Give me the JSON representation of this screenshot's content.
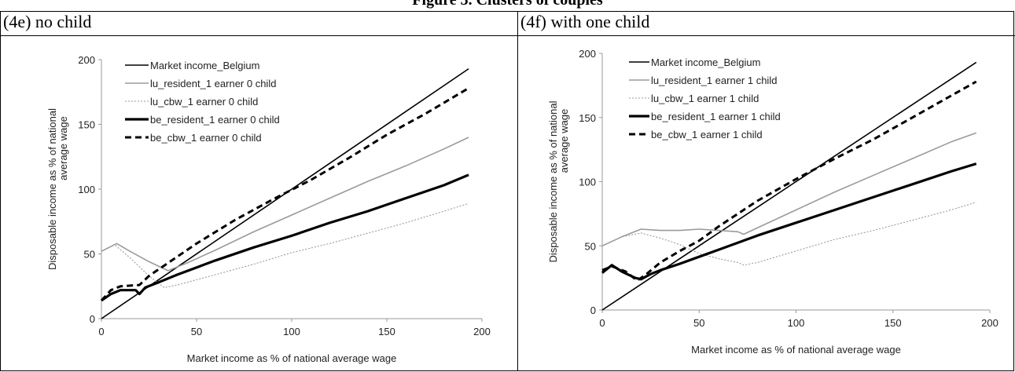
{
  "page_title": "Figure 3. Clusters of couples",
  "chart_data": [
    {
      "type": "line",
      "panel_title": "(4e) no child",
      "xlabel": "Market income as % of national average wage",
      "ylabel_line1": "Disposable income as % of national",
      "ylabel_line2": "average wage",
      "xlim": [
        0,
        200
      ],
      "ylim": [
        0,
        200
      ],
      "xticks": [
        "0",
        "50",
        "100",
        "150",
        "200"
      ],
      "yticks": [
        "0",
        "50",
        "100",
        "150",
        "200"
      ],
      "legend_position": "top-left",
      "series": [
        {
          "name": "Market income_Belgium",
          "color": "#000000",
          "style": "solid-thin",
          "x": [
            0,
            193
          ],
          "y": [
            0,
            193
          ]
        },
        {
          "name": "lu_resident_1 earner 0 child",
          "color": "#9a9a9a",
          "style": "solid-thin",
          "x": [
            0,
            8,
            15,
            25,
            35,
            45,
            60,
            80,
            100,
            120,
            140,
            160,
            180,
            193
          ],
          "y": [
            52,
            58,
            52,
            44,
            37,
            43,
            53,
            67,
            80,
            93,
            106,
            118,
            131,
            140
          ]
        },
        {
          "name": "lu_cbw_1 earner 0 child",
          "color": "#9a9a9a",
          "style": "dotted",
          "x": [
            0,
            7,
            15,
            25,
            33,
            40,
            60,
            80,
            100,
            120,
            140,
            160,
            180,
            193
          ],
          "y": [
            52,
            57,
            47,
            33,
            24,
            26,
            34,
            42,
            51,
            58,
            66,
            74,
            83,
            89
          ]
        },
        {
          "name": "be_resident_1 earner 0 child",
          "color": "#000000",
          "style": "solid-thick",
          "x": [
            0,
            5,
            10,
            18,
            20,
            23,
            30,
            40,
            60,
            80,
            100,
            120,
            140,
            160,
            180,
            193
          ],
          "y": [
            14,
            19,
            22,
            22,
            19,
            24,
            28,
            34,
            45,
            55,
            64,
            74,
            83,
            93,
            103,
            111
          ]
        },
        {
          "name": "be_cbw_1 earner 0 child",
          "color": "#000000",
          "style": "dashed",
          "x": [
            0,
            5,
            10,
            20,
            25,
            35,
            50,
            70,
            90,
            110,
            130,
            150,
            170,
            193
          ],
          "y": [
            14,
            22,
            25,
            26,
            33,
            43,
            58,
            76,
            92,
            107,
            124,
            142,
            158,
            178
          ]
        }
      ]
    },
    {
      "type": "line",
      "panel_title": "(4f) with one child",
      "xlabel": "Market income as % of national average wage",
      "ylabel_line1": "Disposable income as % of national",
      "ylabel_line2": "average wage",
      "xlim": [
        0,
        200
      ],
      "ylim": [
        0,
        200
      ],
      "xticks": [
        "0",
        "50",
        "100",
        "150",
        "200"
      ],
      "yticks": [
        "0",
        "50",
        "100",
        "150",
        "200"
      ],
      "legend_position": "top-left",
      "series": [
        {
          "name": "Market income_Belgium",
          "color": "#000000",
          "style": "solid-thin",
          "x": [
            0,
            193
          ],
          "y": [
            0,
            193
          ]
        },
        {
          "name": "lu_resident_1 earner 1 child",
          "color": "#9a9a9a",
          "style": "solid-thin",
          "x": [
            0,
            10,
            20,
            30,
            40,
            50,
            60,
            70,
            73,
            80,
            100,
            120,
            140,
            160,
            180,
            193
          ],
          "y": [
            50,
            57,
            63,
            62,
            62,
            63,
            62,
            61,
            59,
            64,
            78,
            92,
            105,
            118,
            131,
            138
          ]
        },
        {
          "name": "lu_cbw_1 earner 1 child",
          "color": "#9a9a9a",
          "style": "dotted",
          "x": [
            0,
            10,
            20,
            30,
            40,
            50,
            60,
            70,
            73,
            80,
            100,
            120,
            140,
            160,
            180,
            193
          ],
          "y": [
            50,
            57,
            60,
            56,
            51,
            44,
            40,
            37,
            35,
            37,
            46,
            55,
            62,
            70,
            78,
            84
          ]
        },
        {
          "name": "be_resident_1 earner 1 child",
          "color": "#000000",
          "style": "solid-thick",
          "x": [
            0,
            5,
            10,
            17,
            20,
            25,
            30,
            40,
            60,
            80,
            100,
            120,
            140,
            160,
            180,
            193
          ],
          "y": [
            29,
            35,
            30,
            25,
            24,
            28,
            31,
            36,
            47,
            58,
            68,
            78,
            88,
            98,
            108,
            114
          ]
        },
        {
          "name": "be_cbw_1 earner 1 child",
          "color": "#000000",
          "style": "dashed",
          "x": [
            0,
            5,
            12,
            18,
            22,
            30,
            40,
            50,
            60,
            80,
            100,
            120,
            140,
            160,
            180,
            193
          ],
          "y": [
            31,
            34,
            30,
            23,
            27,
            37,
            46,
            54,
            65,
            85,
            102,
            118,
            133,
            150,
            167,
            178
          ]
        }
      ]
    }
  ]
}
